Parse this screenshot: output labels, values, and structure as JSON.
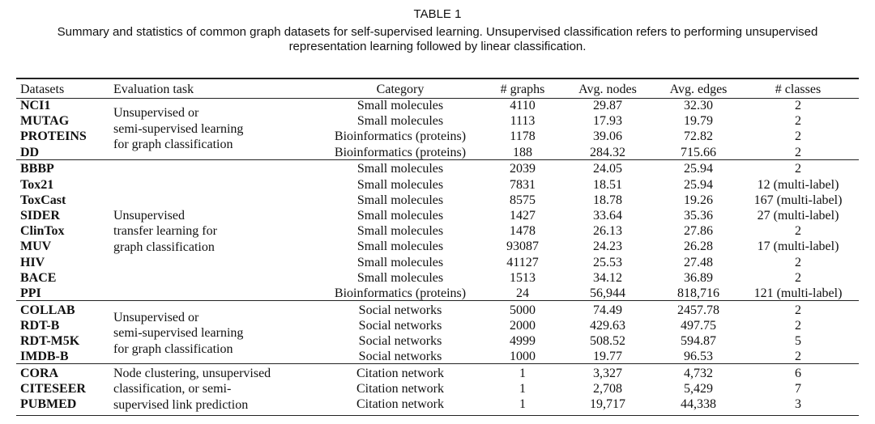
{
  "caption": {
    "label": "TABLE 1",
    "text_lines": [
      "Summary and statistics of common graph datasets for self-supervised learning. Unsupervised classification refers to performing unsupervised",
      "representation learning followed by linear classification."
    ]
  },
  "table": {
    "header": [
      "Datasets",
      "Evaluation task",
      "Category",
      "# graphs",
      "Avg. nodes",
      "Avg. edges",
      "# classes"
    ],
    "groups": [
      {
        "task_lines": [
          "Unsupervised or",
          "semi-supervised learning",
          "for graph classification"
        ],
        "rows": [
          [
            "NCI1",
            "Small molecules",
            "4110",
            "29.87",
            "32.30",
            "2"
          ],
          [
            "MUTAG",
            "Small molecules",
            "1113",
            "17.93",
            "19.79",
            "2"
          ],
          [
            "PROTEINS",
            "Bioinformatics (proteins)",
            "1178",
            "39.06",
            "72.82",
            "2"
          ],
          [
            "DD",
            "Bioinformatics (proteins)",
            "188",
            "284.32",
            "715.66",
            "2"
          ]
        ]
      },
      {
        "task_lines": [
          "Unsupervised",
          "transfer learning for",
          "graph classification"
        ],
        "rows": [
          [
            "BBBP",
            "Small molecules",
            "2039",
            "24.05",
            "25.94",
            "2"
          ],
          [
            "Tox21",
            "Small molecules",
            "7831",
            "18.51",
            "25.94",
            "12 (multi-label)"
          ],
          [
            "ToxCast",
            "Small molecules",
            "8575",
            "18.78",
            "19.26",
            "167 (multi-label)"
          ],
          [
            "SIDER",
            "Small molecules",
            "1427",
            "33.64",
            "35.36",
            "27 (multi-label)"
          ],
          [
            "ClinTox",
            "Small molecules",
            "1478",
            "26.13",
            "27.86",
            "2"
          ],
          [
            "MUV",
            "Small molecules",
            "93087",
            "24.23",
            "26.28",
            "17 (multi-label)"
          ],
          [
            "HIV",
            "Small molecules",
            "41127",
            "25.53",
            "27.48",
            "2"
          ],
          [
            "BACE",
            "Small molecules",
            "1513",
            "34.12",
            "36.89",
            "2"
          ],
          [
            "PPI",
            "Bioinformatics (proteins)",
            "24",
            "56,944",
            "818,716",
            "121 (multi-label)"
          ]
        ]
      },
      {
        "task_lines": [
          "Unsupervised or",
          "semi-supervised learning",
          "for graph classification"
        ],
        "rows": [
          [
            "COLLAB",
            "Social networks",
            "5000",
            "74.49",
            "2457.78",
            "2"
          ],
          [
            "RDT-B",
            "Social networks",
            "2000",
            "429.63",
            "497.75",
            "2"
          ],
          [
            "RDT-M5K",
            "Social networks",
            "4999",
            "508.52",
            "594.87",
            "5"
          ],
          [
            "IMDB-B",
            "Social networks",
            "1000",
            "19.77",
            "96.53",
            "2"
          ]
        ]
      },
      {
        "task_lines": [
          "Node clustering, unsupervised",
          "classification, or semi-",
          "supervised link prediction"
        ],
        "rows": [
          [
            "CORA",
            "Citation network",
            "1",
            "3,327",
            "4,732",
            "6"
          ],
          [
            "CITESEER",
            "Citation network",
            "1",
            "2,708",
            "5,429",
            "7"
          ],
          [
            "PUBMED",
            "Citation network",
            "1",
            "19,717",
            "44,338",
            "3"
          ]
        ]
      }
    ]
  }
}
